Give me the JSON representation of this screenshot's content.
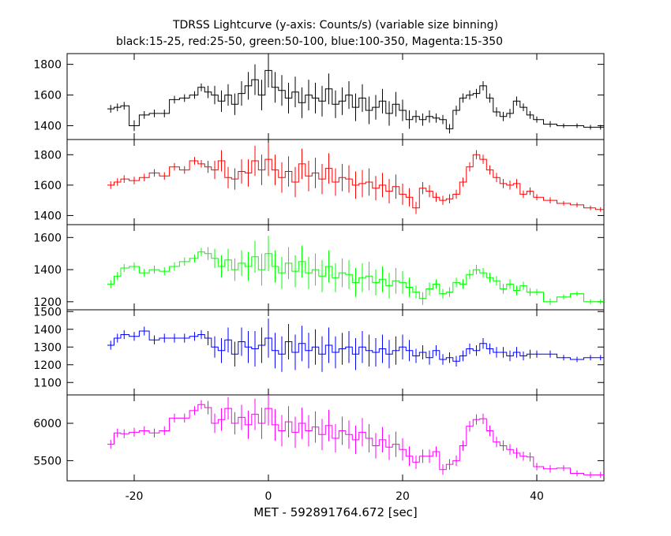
{
  "chart_data": {
    "type": "line",
    "title": "TDRSS Lightcurve (y-axis: Counts/s) (variable size binning)",
    "subtitle": "black:15-25, red:25-50, green:50-100, blue:100-350, Magenta:15-350",
    "xlabel": "MET - 592891764.672 [sec]",
    "xlim": [
      -30,
      50
    ],
    "x_ticks": [
      -20,
      0,
      20,
      40
    ],
    "x_tick_labels": [
      "-20",
      "0",
      "20",
      "40"
    ],
    "panels": [
      {
        "name": "black",
        "color": "#000000",
        "ylim": [
          1310,
          1870
        ],
        "y_ticks": [
          1400,
          1600,
          1800
        ],
        "y_tick_labels": [
          "1400",
          "1600",
          "1800"
        ],
        "x": [
          -23.5,
          -22.5,
          -21.5,
          -20,
          -18.5,
          -17,
          -15.5,
          -14,
          -12.5,
          -11,
          -10,
          -9,
          -8,
          -7,
          -6,
          -5,
          -4,
          -3,
          -2,
          -1,
          0,
          1,
          2,
          3,
          4,
          5,
          6,
          7,
          8,
          9,
          10,
          11,
          12,
          13,
          14,
          15,
          16,
          17,
          18,
          19,
          20,
          21,
          22,
          23,
          24,
          25,
          26,
          27,
          28,
          29,
          30,
          31,
          32,
          33,
          34,
          35,
          36,
          37,
          38,
          39,
          40,
          42,
          44,
          46,
          48,
          49.5
        ],
        "y": [
          1510,
          1520,
          1530,
          1400,
          1470,
          1480,
          1480,
          1570,
          1580,
          1600,
          1650,
          1620,
          1600,
          1560,
          1600,
          1540,
          1610,
          1660,
          1700,
          1600,
          1760,
          1650,
          1630,
          1580,
          1620,
          1550,
          1600,
          1580,
          1560,
          1640,
          1540,
          1560,
          1600,
          1520,
          1580,
          1500,
          1520,
          1560,
          1480,
          1540,
          1500,
          1440,
          1460,
          1440,
          1460,
          1450,
          1440,
          1380,
          1500,
          1580,
          1600,
          1610,
          1660,
          1580,
          1490,
          1460,
          1480,
          1560,
          1520,
          1470,
          1440,
          1410,
          1400,
          1400,
          1390,
          1390
        ],
        "yerr": [
          25,
          25,
          25,
          35,
          25,
          25,
          25,
          25,
          25,
          25,
          25,
          40,
          60,
          70,
          70,
          70,
          80,
          90,
          100,
          100,
          110,
          100,
          100,
          100,
          100,
          100,
          100,
          100,
          100,
          100,
          90,
          90,
          90,
          90,
          90,
          90,
          80,
          80,
          80,
          80,
          70,
          60,
          40,
          40,
          40,
          30,
          30,
          30,
          30,
          30,
          30,
          30,
          30,
          30,
          30,
          30,
          30,
          30,
          25,
          25,
          20,
          20,
          15,
          15,
          15,
          15
        ]
      },
      {
        "name": "red",
        "color": "#ff0000",
        "ylim": [
          1340,
          1900
        ],
        "y_ticks": [
          1400,
          1600,
          1800
        ],
        "y_tick_labels": [
          "1400",
          "1600",
          "1800"
        ],
        "x": [
          -23.5,
          -22.5,
          -21.5,
          -20,
          -18.5,
          -17,
          -15.5,
          -14,
          -12.5,
          -11,
          -10,
          -9,
          -8,
          -7,
          -6,
          -5,
          -4,
          -3,
          -2,
          -1,
          0,
          1,
          2,
          3,
          4,
          5,
          6,
          7,
          8,
          9,
          10,
          11,
          12,
          13,
          14,
          15,
          16,
          17,
          18,
          19,
          20,
          21,
          22,
          23,
          24,
          25,
          26,
          27,
          28,
          29,
          30,
          31,
          32,
          33,
          34,
          35,
          36,
          37,
          38,
          39,
          40,
          42,
          44,
          46,
          48,
          49.5
        ],
        "y": [
          1600,
          1620,
          1640,
          1630,
          1650,
          1680,
          1660,
          1720,
          1700,
          1760,
          1740,
          1720,
          1700,
          1760,
          1650,
          1640,
          1690,
          1680,
          1760,
          1700,
          1770,
          1700,
          1650,
          1690,
          1620,
          1740,
          1660,
          1680,
          1640,
          1710,
          1620,
          1650,
          1640,
          1600,
          1610,
          1620,
          1580,
          1600,
          1560,
          1590,
          1540,
          1520,
          1450,
          1580,
          1560,
          1520,
          1500,
          1510,
          1540,
          1620,
          1720,
          1800,
          1770,
          1700,
          1650,
          1610,
          1600,
          1610,
          1540,
          1560,
          1520,
          1500,
          1480,
          1470,
          1450,
          1440
        ],
        "yerr": [
          25,
          25,
          25,
          25,
          25,
          25,
          25,
          25,
          25,
          25,
          25,
          40,
          60,
          70,
          70,
          70,
          80,
          90,
          100,
          100,
          110,
          100,
          100,
          100,
          100,
          100,
          100,
          100,
          100,
          100,
          90,
          90,
          90,
          90,
          90,
          90,
          80,
          80,
          80,
          80,
          70,
          60,
          40,
          40,
          40,
          30,
          30,
          30,
          30,
          30,
          30,
          30,
          30,
          30,
          30,
          30,
          30,
          30,
          25,
          25,
          20,
          20,
          15,
          15,
          15,
          15
        ]
      },
      {
        "name": "green",
        "color": "#00ff00",
        "ylim": [
          1150,
          1680
        ],
        "y_ticks": [
          1200,
          1400,
          1600
        ],
        "y_tick_labels": [
          "1200",
          "1400",
          "1600"
        ],
        "x": [
          -23.5,
          -22.5,
          -21.5,
          -20,
          -18.5,
          -17,
          -15.5,
          -14,
          -12.5,
          -11,
          -10,
          -9,
          -8,
          -7,
          -6,
          -5,
          -4,
          -3,
          -2,
          -1,
          0,
          1,
          2,
          3,
          4,
          5,
          6,
          7,
          8,
          9,
          10,
          11,
          12,
          13,
          14,
          15,
          16,
          17,
          18,
          19,
          20,
          21,
          22,
          23,
          24,
          25,
          26,
          27,
          28,
          29,
          30,
          31,
          32,
          33,
          34,
          35,
          36,
          37,
          38,
          39,
          40,
          42,
          44,
          46,
          48,
          49.5
        ],
        "y": [
          1310,
          1360,
          1410,
          1420,
          1380,
          1400,
          1390,
          1420,
          1450,
          1470,
          1510,
          1500,
          1470,
          1420,
          1460,
          1400,
          1440,
          1420,
          1480,
          1400,
          1500,
          1420,
          1380,
          1440,
          1390,
          1450,
          1380,
          1400,
          1360,
          1420,
          1350,
          1380,
          1370,
          1320,
          1350,
          1360,
          1320,
          1340,
          1300,
          1330,
          1320,
          1290,
          1260,
          1220,
          1280,
          1310,
          1250,
          1260,
          1320,
          1310,
          1370,
          1400,
          1380,
          1350,
          1330,
          1280,
          1310,
          1270,
          1300,
          1260,
          1260,
          1200,
          1230,
          1250,
          1200,
          1200
        ],
        "yerr": [
          25,
          25,
          25,
          25,
          25,
          25,
          25,
          25,
          25,
          25,
          25,
          40,
          60,
          70,
          70,
          70,
          80,
          90,
          100,
          100,
          110,
          100,
          100,
          100,
          100,
          100,
          100,
          100,
          100,
          100,
          90,
          90,
          90,
          90,
          90,
          90,
          80,
          80,
          80,
          80,
          70,
          60,
          40,
          40,
          40,
          30,
          30,
          30,
          30,
          30,
          30,
          30,
          30,
          30,
          30,
          30,
          30,
          30,
          25,
          25,
          20,
          20,
          15,
          15,
          15,
          15
        ]
      },
      {
        "name": "blue",
        "color": "#0000ff",
        "ylim": [
          1030,
          1510
        ],
        "y_ticks": [
          1100,
          1200,
          1300,
          1400,
          1500
        ],
        "y_tick_labels": [
          "1100",
          "1200",
          "1300",
          "1400",
          "1500"
        ],
        "x": [
          -23.5,
          -22.5,
          -21.5,
          -20,
          -18.5,
          -17,
          -15.5,
          -14,
          -12.5,
          -11,
          -10,
          -9,
          -8,
          -7,
          -6,
          -5,
          -4,
          -3,
          -2,
          -1,
          0,
          1,
          2,
          3,
          4,
          5,
          6,
          7,
          8,
          9,
          10,
          11,
          12,
          13,
          14,
          15,
          16,
          17,
          18,
          19,
          20,
          21,
          22,
          23,
          24,
          25,
          26,
          27,
          28,
          29,
          30,
          31,
          32,
          33,
          34,
          35,
          36,
          37,
          38,
          39,
          40,
          42,
          44,
          46,
          48,
          49.5
        ],
        "y": [
          1310,
          1350,
          1370,
          1360,
          1390,
          1340,
          1350,
          1350,
          1350,
          1360,
          1370,
          1350,
          1300,
          1280,
          1340,
          1260,
          1330,
          1300,
          1290,
          1310,
          1350,
          1280,
          1260,
          1330,
          1270,
          1320,
          1280,
          1300,
          1260,
          1310,
          1270,
          1290,
          1300,
          1260,
          1300,
          1280,
          1270,
          1290,
          1260,
          1280,
          1300,
          1280,
          1250,
          1270,
          1240,
          1280,
          1230,
          1240,
          1220,
          1250,
          1290,
          1280,
          1320,
          1290,
          1270,
          1270,
          1250,
          1270,
          1250,
          1260,
          1260,
          1260,
          1240,
          1230,
          1240,
          1240
        ],
        "yerr": [
          25,
          25,
          25,
          25,
          25,
          25,
          25,
          25,
          25,
          25,
          25,
          40,
          60,
          70,
          70,
          70,
          80,
          90,
          100,
          100,
          110,
          100,
          100,
          100,
          100,
          100,
          100,
          100,
          100,
          100,
          90,
          90,
          90,
          90,
          90,
          90,
          80,
          80,
          80,
          80,
          70,
          60,
          40,
          40,
          40,
          30,
          30,
          30,
          30,
          30,
          30,
          30,
          30,
          30,
          30,
          30,
          30,
          30,
          25,
          25,
          20,
          20,
          15,
          15,
          15,
          15
        ]
      },
      {
        "name": "magenta",
        "color": "#ff00ff",
        "ylim": [
          5230,
          6380
        ],
        "y_ticks": [
          5500,
          6000
        ],
        "y_tick_labels": [
          "5500",
          "6000"
        ],
        "x": [
          -23.5,
          -22.5,
          -21.5,
          -20,
          -18.5,
          -17,
          -15.5,
          -14,
          -12.5,
          -11,
          -10,
          -9,
          -8,
          -7,
          -6,
          -5,
          -4,
          -3,
          -2,
          -1,
          0,
          1,
          2,
          3,
          4,
          5,
          6,
          7,
          8,
          9,
          10,
          11,
          12,
          13,
          14,
          15,
          16,
          17,
          18,
          19,
          20,
          21,
          22,
          23,
          24,
          25,
          26,
          27,
          28,
          29,
          30,
          31,
          32,
          33,
          34,
          35,
          36,
          37,
          38,
          39,
          40,
          42,
          44,
          46,
          48,
          49.5
        ],
        "y": [
          5720,
          5870,
          5860,
          5880,
          5900,
          5870,
          5900,
          6070,
          6070,
          6170,
          6250,
          6210,
          6000,
          6050,
          6200,
          6000,
          6080,
          5980,
          6120,
          6000,
          6200,
          5980,
          5900,
          6020,
          5880,
          6000,
          5900,
          5950,
          5850,
          5970,
          5800,
          5900,
          5850,
          5780,
          5880,
          5800,
          5700,
          5780,
          5680,
          5720,
          5650,
          5560,
          5480,
          5560,
          5560,
          5620,
          5380,
          5450,
          5500,
          5700,
          5960,
          6050,
          6060,
          5900,
          5750,
          5700,
          5650,
          5600,
          5560,
          5550,
          5420,
          5390,
          5400,
          5330,
          5310,
          5310
        ],
        "yerr": [
          60,
          60,
          60,
          60,
          60,
          60,
          60,
          60,
          60,
          60,
          60,
          90,
          130,
          150,
          150,
          150,
          170,
          190,
          210,
          210,
          230,
          210,
          210,
          210,
          210,
          210,
          210,
          210,
          210,
          210,
          190,
          190,
          190,
          190,
          190,
          190,
          170,
          170,
          170,
          170,
          150,
          130,
          90,
          90,
          90,
          70,
          70,
          70,
          70,
          70,
          70,
          70,
          70,
          70,
          70,
          70,
          70,
          70,
          60,
          60,
          50,
          50,
          40,
          40,
          40,
          40
        ]
      }
    ]
  }
}
